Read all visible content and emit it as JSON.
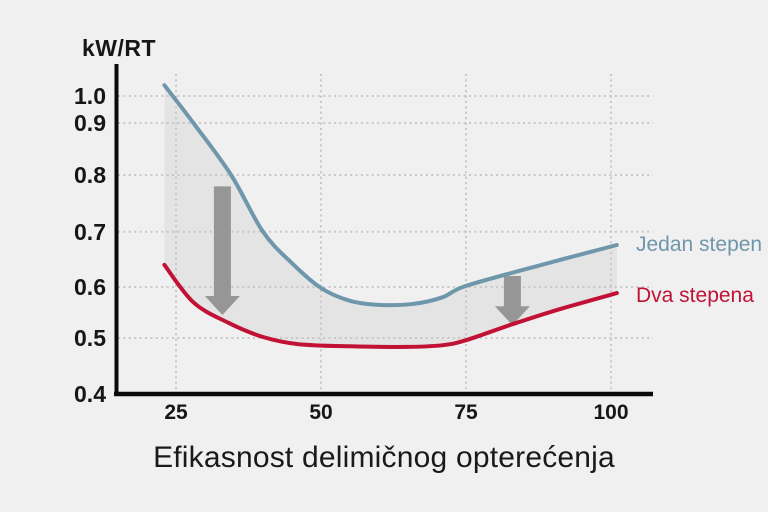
{
  "chart_data": {
    "type": "line",
    "title": "Efikasnost delimičnog opterećenja",
    "y_axis_unit": "kW/RT",
    "x_ticks": [
      25,
      50,
      75,
      100
    ],
    "y_ticks": [
      0.4,
      0.5,
      0.6,
      0.7,
      0.8,
      0.9,
      1.0
    ],
    "x_range": [
      20,
      103
    ],
    "y_range": [
      0.4,
      1.05
    ],
    "grid": "dotted",
    "legend_position": "right of line ends",
    "series": [
      {
        "name": "Jedan stepen",
        "color": "#6f97ab",
        "points": [
          [
            23,
            1.04
          ],
          [
            28,
            0.9
          ],
          [
            34.5,
            0.8
          ],
          [
            40,
            0.7
          ],
          [
            45,
            0.643
          ],
          [
            50,
            0.598
          ],
          [
            55,
            0.573
          ],
          [
            60,
            0.565
          ],
          [
            66,
            0.567
          ],
          [
            71,
            0.58
          ],
          [
            75,
            0.602
          ],
          [
            88,
            0.64
          ],
          [
            101,
            0.676
          ]
        ]
      },
      {
        "name": "Dva stepena",
        "color": "#c11236",
        "points": [
          [
            23,
            0.64
          ],
          [
            28,
            0.57
          ],
          [
            34,
            0.53
          ],
          [
            40,
            0.502
          ],
          [
            46,
            0.489
          ],
          [
            55,
            0.485
          ],
          [
            65,
            0.484
          ],
          [
            71,
            0.487
          ],
          [
            75,
            0.496
          ],
          [
            83,
            0.527
          ],
          [
            91,
            0.556
          ],
          [
            101,
            0.588
          ]
        ]
      }
    ],
    "arrows": [
      {
        "x": 33,
        "from": 0.78,
        "to": 0.545
      },
      {
        "x": 83,
        "from": 0.62,
        "to": 0.525
      }
    ]
  },
  "colors": {
    "background": "#f0f0f0",
    "band_fill": "#e4e4e4",
    "grid": "#c7c7c7",
    "axis": "#0a0a0a",
    "arrow": "#969696",
    "text": "#161616",
    "title": "#1a1a1a"
  }
}
